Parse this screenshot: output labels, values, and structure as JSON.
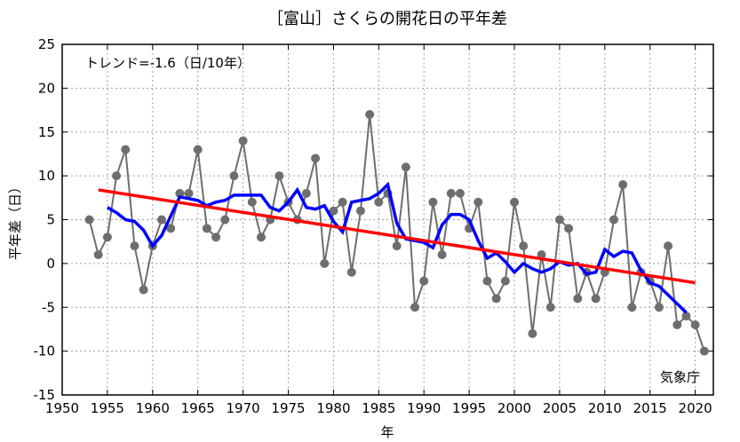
{
  "chart_data": {
    "type": "line",
    "title": "［富山］さくらの開花日の平年差",
    "xlabel": "年",
    "ylabel": "平年差（日）",
    "xlim": [
      1950,
      2022
    ],
    "ylim": [
      -15,
      25
    ],
    "xticks": [
      1950,
      1955,
      1960,
      1965,
      1970,
      1975,
      1980,
      1985,
      1990,
      1995,
      2000,
      2005,
      2010,
      2015,
      2020
    ],
    "yticks": [
      -15,
      -10,
      -5,
      0,
      5,
      10,
      15,
      20,
      25
    ],
    "grid": true,
    "annotation": "トレンド=-1.6（日/10年）",
    "source": "気象庁",
    "colors": {
      "observed": "#6e6e6e",
      "running_mean": "#0000ff",
      "trend": "#ff0000"
    },
    "series": [
      {
        "key": "observed",
        "x": [
          1953,
          1954,
          1955,
          1956,
          1957,
          1958,
          1959,
          1960,
          1961,
          1962,
          1963,
          1964,
          1965,
          1966,
          1967,
          1968,
          1969,
          1970,
          1971,
          1972,
          1973,
          1974,
          1975,
          1976,
          1977,
          1978,
          1979,
          1980,
          1981,
          1982,
          1983,
          1984,
          1985,
          1986,
          1987,
          1988,
          1989,
          1990,
          1991,
          1992,
          1993,
          1994,
          1995,
          1996,
          1997,
          1998,
          1999,
          2000,
          2001,
          2002,
          2003,
          2004,
          2005,
          2006,
          2007,
          2008,
          2009,
          2010,
          2011,
          2012,
          2013,
          2014,
          2015,
          2016,
          2017,
          2018,
          2019,
          2020,
          2021
        ],
        "values": [
          5,
          1,
          3,
          10,
          13,
          2,
          -3,
          2,
          5,
          4,
          8,
          8,
          13,
          4,
          3,
          5,
          10,
          14,
          7,
          3,
          5,
          10,
          7,
          5,
          8,
          12,
          0,
          6,
          7,
          -1,
          6,
          17,
          7,
          8,
          2,
          11,
          -5,
          -2,
          7,
          1,
          8,
          8,
          4,
          7,
          -2,
          -4,
          -2,
          7,
          2,
          -8,
          1,
          -5,
          5,
          4,
          -4,
          -1,
          -4,
          -1,
          5,
          9,
          -5,
          -1,
          -2,
          -5,
          2,
          -7,
          -6,
          -7,
          -10
        ]
      },
      {
        "key": "running_mean",
        "x": [
          1955,
          1956,
          1957,
          1958,
          1959,
          1960,
          1961,
          1962,
          1963,
          1964,
          1965,
          1966,
          1967,
          1968,
          1969,
          1970,
          1971,
          1972,
          1973,
          1974,
          1975,
          1976,
          1977,
          1978,
          1979,
          1980,
          1981,
          1982,
          1983,
          1984,
          1985,
          1986,
          1987,
          1988,
          1989,
          1990,
          1991,
          1992,
          1993,
          1994,
          1995,
          1996,
          1997,
          1998,
          1999,
          2000,
          2001,
          2002,
          2003,
          2004,
          2005,
          2006,
          2007,
          2008,
          2009,
          2010,
          2011,
          2012,
          2013,
          2014,
          2015,
          2016,
          2017,
          2018,
          2019
        ],
        "values": [
          6.4,
          5.8,
          5.0,
          4.8,
          3.8,
          2.0,
          3.2,
          5.4,
          7.6,
          7.4,
          7.2,
          6.6,
          7.0,
          7.2,
          7.8,
          7.8,
          7.8,
          7.8,
          6.4,
          6.0,
          7.0,
          8.4,
          6.4,
          6.2,
          6.6,
          4.8,
          3.6,
          7.0,
          7.2,
          7.4,
          8.0,
          9.0,
          4.6,
          2.8,
          2.6,
          2.4,
          1.8,
          4.4,
          5.6,
          5.6,
          5.0,
          2.6,
          0.6,
          1.2,
          0.2,
          -1.0,
          0.0,
          -0.6,
          -1.0,
          -0.6,
          0.2,
          -0.2,
          0.0,
          -1.2,
          -1.0,
          1.6,
          0.8,
          1.4,
          1.2,
          -0.8,
          -2.2,
          -2.6,
          -3.6,
          -4.6,
          -5.6
        ]
      },
      {
        "key": "trend",
        "x": [
          1954,
          2020
        ],
        "values": [
          8.4,
          -2.2
        ]
      }
    ]
  }
}
